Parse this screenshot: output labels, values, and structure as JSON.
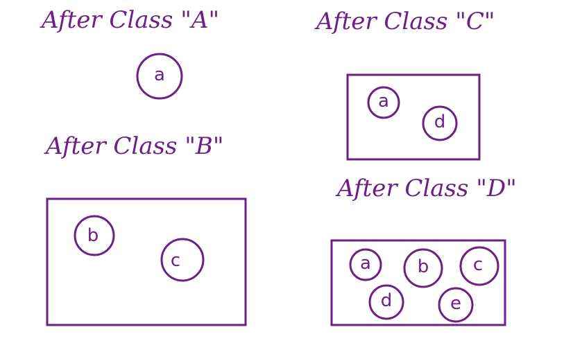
{
  "panels": {
    "a": {
      "title": "After Class \"A\"",
      "members": [
        "a"
      ]
    },
    "b": {
      "title": "After Class \"B\"",
      "members": [
        "b",
        "c"
      ]
    },
    "c": {
      "title": "After Class \"C\"",
      "members": [
        "a",
        "d"
      ]
    },
    "d": {
      "title": "After Class \"D\"",
      "members": [
        "a",
        "b",
        "c",
        "d",
        "e"
      ]
    }
  },
  "colors": {
    "ink": "#6d1f86",
    "background": "#ffffff"
  }
}
